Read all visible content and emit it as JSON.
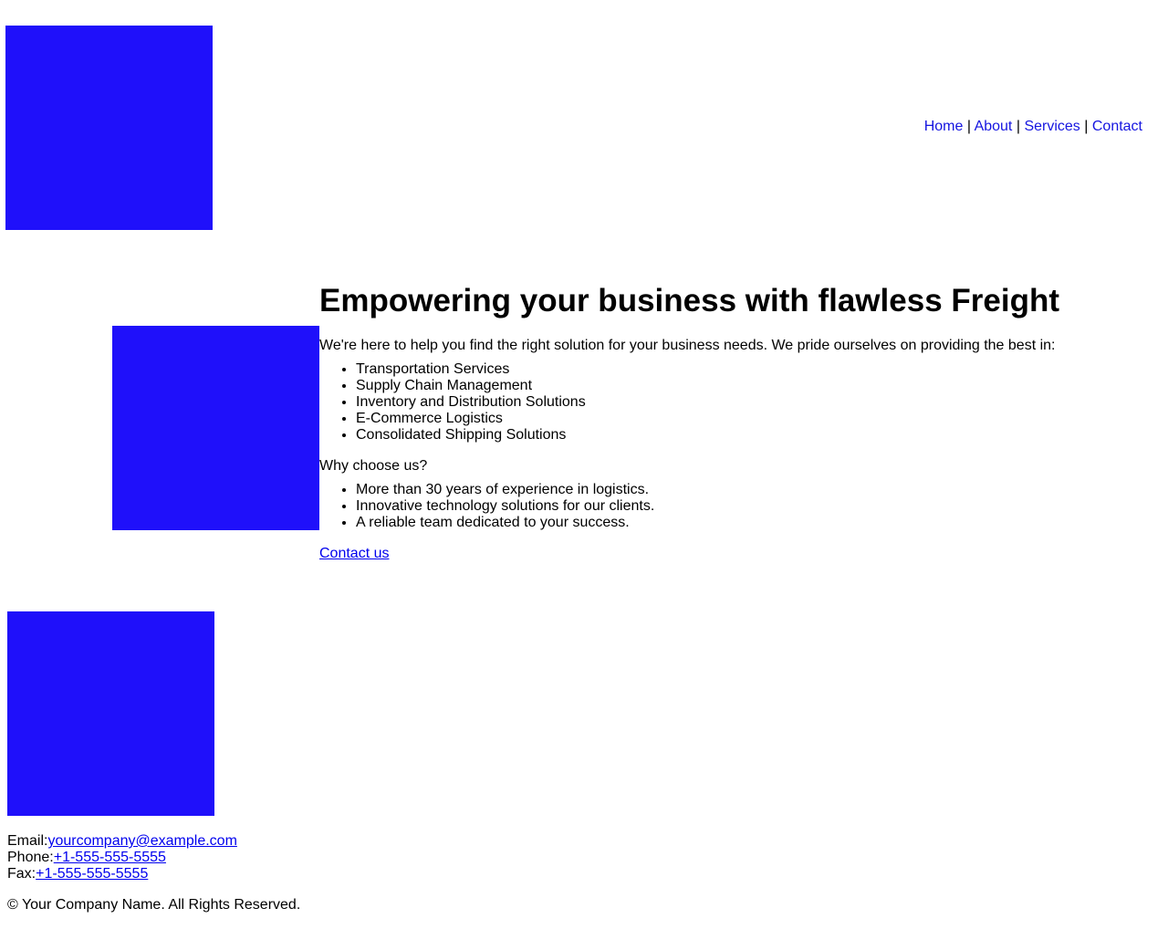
{
  "header": {
    "nav": [
      {
        "label": "Home"
      },
      {
        "label": "About"
      },
      {
        "label": "Services"
      },
      {
        "label": "Contact"
      }
    ],
    "separator": "|"
  },
  "main": {
    "title": "Empowering your business with flawless Freight",
    "intro": "We're here to help you find the right solution for your business needs. We pride ourselves on providing the best in:",
    "services": [
      "Transportation Services",
      "Supply Chain Management",
      "Inventory and Distribution Solutions",
      "E-Commerce Logistics",
      "Consolidated Shipping Solutions"
    ],
    "why_heading": "Why choose us?",
    "reasons": [
      "More than 30 years of experience in logistics.",
      "Innovative technology solutions for our clients.",
      "A reliable team dedicated to your success."
    ],
    "cta_label": "Contact us"
  },
  "footer": {
    "email_label": "Email:",
    "email": "yourcompany@example.com",
    "phone_label": "Phone:",
    "phone": "+1-555-555-5555",
    "fax_label": "Fax:",
    "fax": "+1-555-555-5555",
    "copyright": "© Your Company Name. All Rights Reserved."
  },
  "colors": {
    "placeholder_block": "#1f10fa",
    "nav_link": "#1515e0",
    "link": "#0000ee"
  }
}
